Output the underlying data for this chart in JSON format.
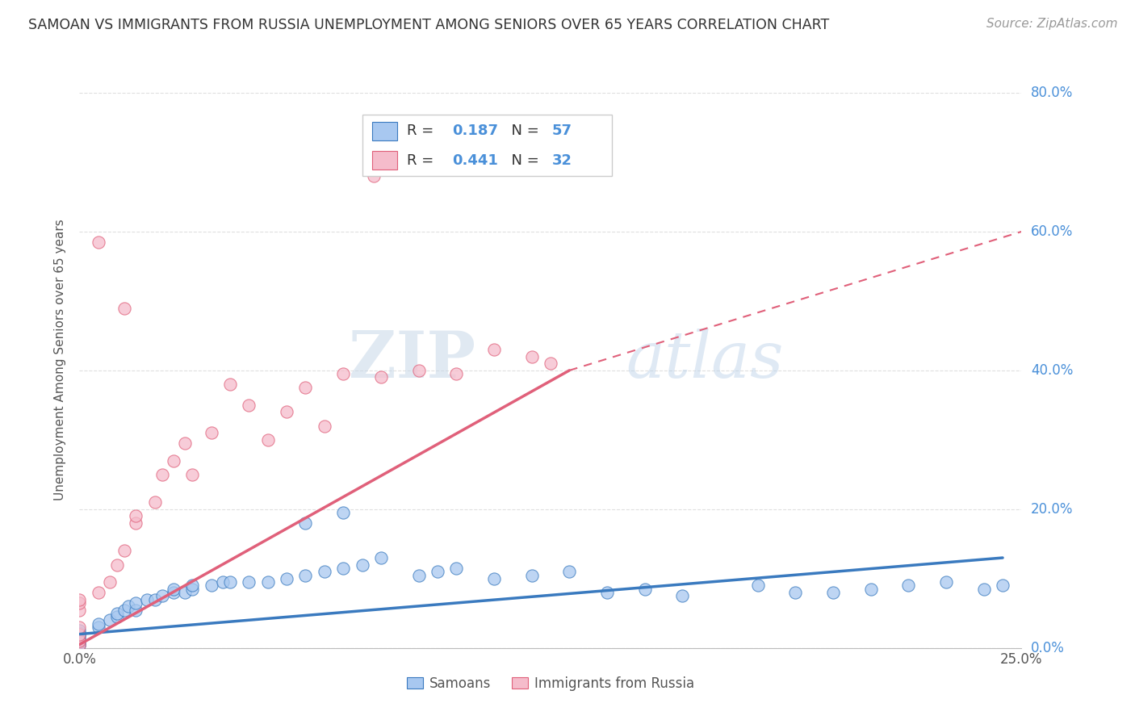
{
  "title": "SAMOAN VS IMMIGRANTS FROM RUSSIA UNEMPLOYMENT AMONG SENIORS OVER 65 YEARS CORRELATION CHART",
  "source": "Source: ZipAtlas.com",
  "ylabel": "Unemployment Among Seniors over 65 years",
  "xmin": 0.0,
  "xmax": 0.25,
  "ymin": 0.0,
  "ymax": 0.83,
  "samoan_color": "#a8c8f0",
  "samoan_color_dark": "#3a7abf",
  "russia_color": "#f5bccb",
  "russia_color_dark": "#e0607a",
  "R_samoan": 0.187,
  "N_samoan": 57,
  "R_russia": 0.441,
  "N_russia": 32,
  "legend_labels": [
    "Samoans",
    "Immigrants from Russia"
  ],
  "watermark_zip": "ZIP",
  "watermark_atlas": "atlas",
  "ytick_color": "#4a90d9",
  "xtick_color": "#555555",
  "grid_color": "#dddddd",
  "title_color": "#333333",
  "source_color": "#999999",
  "ylabel_color": "#555555"
}
